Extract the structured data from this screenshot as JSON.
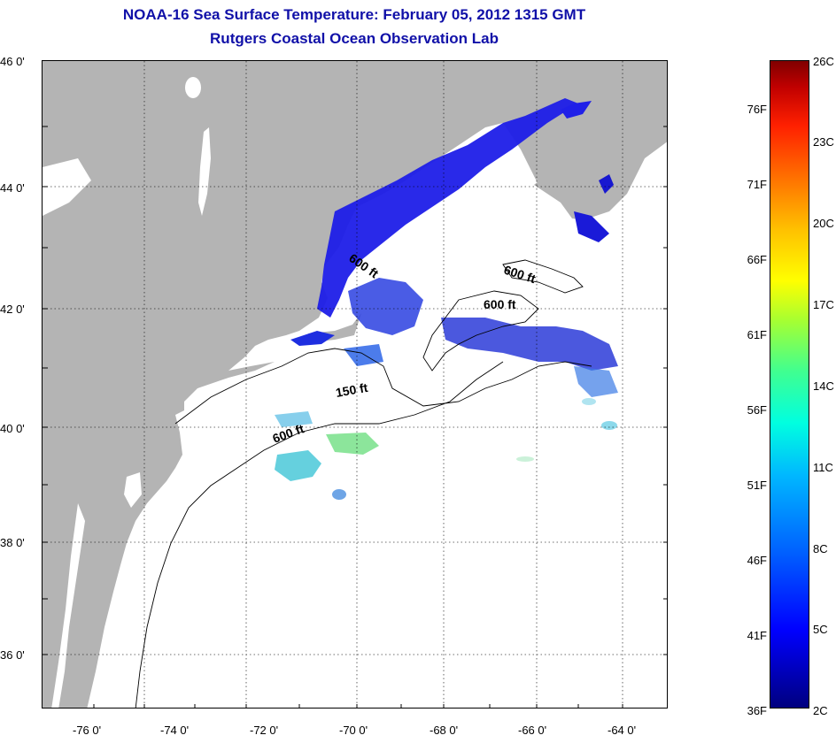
{
  "header": {
    "title": "NOAA-16 Sea Surface Temperature:  February 05, 2012 1315 GMT",
    "subtitle": "Rutgers Coastal Ocean Observation Lab"
  },
  "map": {
    "lat_labels": [
      "46 0'",
      "44 0'",
      "42 0'",
      "40 0'",
      "38 0'",
      "36 0'"
    ],
    "lon_labels": [
      "-76 0'",
      "-74 0'",
      "-72 0'",
      "-70 0'",
      "-68 0'",
      "-66 0'",
      "-64 0'"
    ],
    "contour_labels": [
      "600 ft",
      "600 ft",
      "600 ft",
      "150 ft",
      "600 ft"
    ],
    "land_color": "#b4b4b4",
    "water_color": "#ffffff"
  },
  "colorbar": {
    "fahrenheit_labels": [
      "76F",
      "71F",
      "66F",
      "61F",
      "56F",
      "51F",
      "46F",
      "41F",
      "36F"
    ],
    "celsius_labels": [
      "26C",
      "23C",
      "20C",
      "17C",
      "14C",
      "11C",
      "8C",
      "5C",
      "2C"
    ]
  }
}
